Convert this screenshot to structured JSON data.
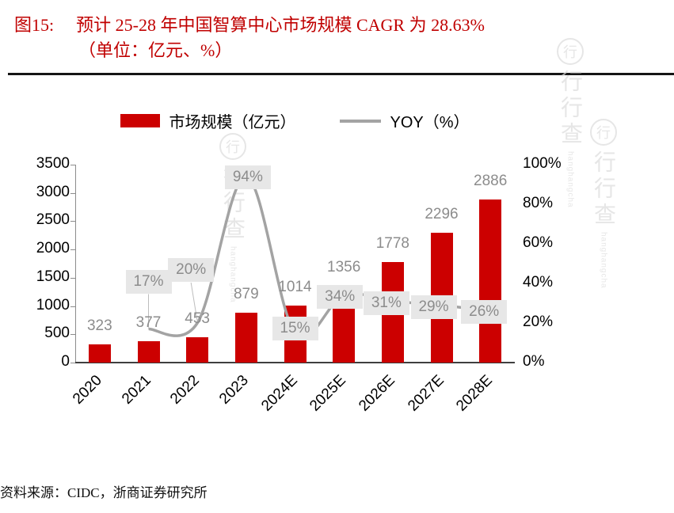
{
  "title": {
    "tag": "图15:",
    "text": "预计 25-28 年中国智算中心市场规模 CAGR 为 28.63%",
    "unit": "（单位：亿元、%）"
  },
  "legend": {
    "bar_label": "市场规模（亿元）",
    "line_label": "YOY（%）"
  },
  "footer": {
    "source": "资料来源：CIDC，浙商证券研究所"
  },
  "watermark": {
    "logo": "行",
    "cn": "行行查",
    "en": "hanghangcha"
  },
  "colors": {
    "title": "#c00000",
    "bar": "#cc0000",
    "line": "#a3a3a3",
    "gray_label": "#8c8c8c",
    "yoy_box_bg": "#e7e7e7",
    "axis": "#8c8c8c"
  },
  "chart_data": {
    "type": "bar+line",
    "title": "预计 25-28 年中国智算中心市场规模 CAGR 为 28.63%（单位：亿元、%）",
    "categories": [
      "2020",
      "2021",
      "2022",
      "2023",
      "2024E",
      "2025E",
      "2026E",
      "2027E",
      "2028E"
    ],
    "series": [
      {
        "name": "市场规模（亿元）",
        "type": "bar",
        "axis": "left",
        "values": [
          323,
          377,
          453,
          879,
          1014,
          1356,
          1778,
          2296,
          2886
        ]
      },
      {
        "name": "YOY（%）",
        "type": "line",
        "axis": "right",
        "values": [
          null,
          17,
          20,
          94,
          15,
          34,
          31,
          29,
          26
        ],
        "labels": [
          "",
          "17%",
          "20%",
          "94%",
          "15%",
          "34%",
          "31%",
          "29%",
          "26%"
        ]
      }
    ],
    "left_axis": {
      "min": 0,
      "max": 3500,
      "step": 500
    },
    "right_axis": {
      "min": 0,
      "max": 100,
      "step": 20,
      "unit": "%"
    },
    "grid": false,
    "legend_position": "top-center"
  }
}
